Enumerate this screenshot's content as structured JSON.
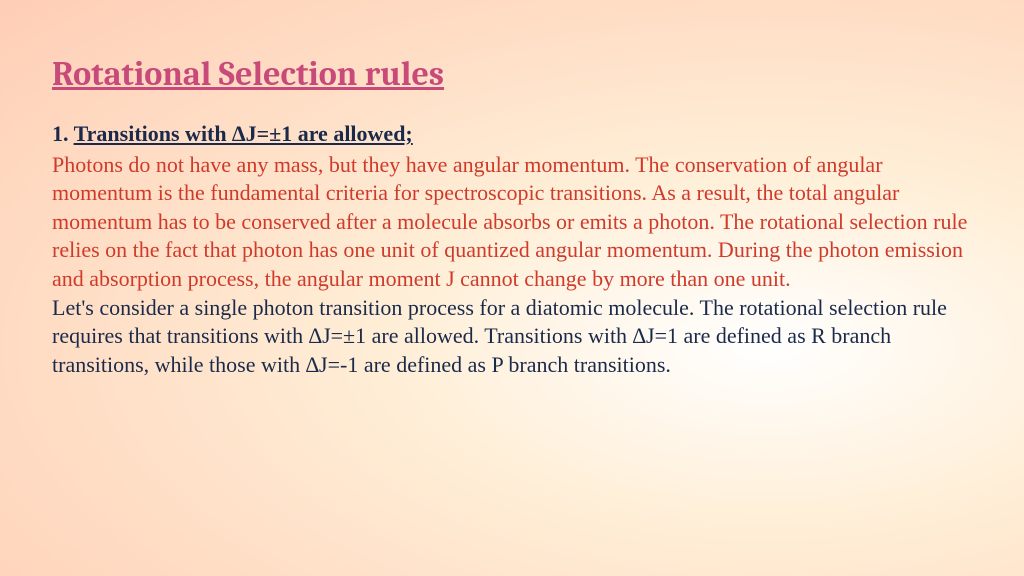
{
  "colors": {
    "title": "#c84a7a",
    "subhead": "#1a2a4a",
    "body_red": "#d03a2a",
    "body_navy": "#1a2a4a"
  },
  "title": "Rotational Selection rules",
  "subhead_num": "1.",
  "subhead_text": "Transitions with ∆J=±1 are allowed;",
  "para1": "Photons do not have any mass, but they have angular momentum. The conservation of angular momentum is the fundamental criteria for spectroscopic transitions. As a result, the total angular momentum has to be conserved after a molecule absorbs or emits a photon. The rotational selection rule relies on the fact that photon has one unit of quantized angular momentum. During the photon emission and absorption process, the angular moment J cannot change by more than one unit.",
  "para2": "Let's consider a single photon transition process for a diatomic molecule. The rotational selection rule requires that transitions with ∆J=±1 are allowed. Transitions with ∆J=1 are defined as R branch transitions, while those with ∆J=-1 are defined as P branch transitions."
}
